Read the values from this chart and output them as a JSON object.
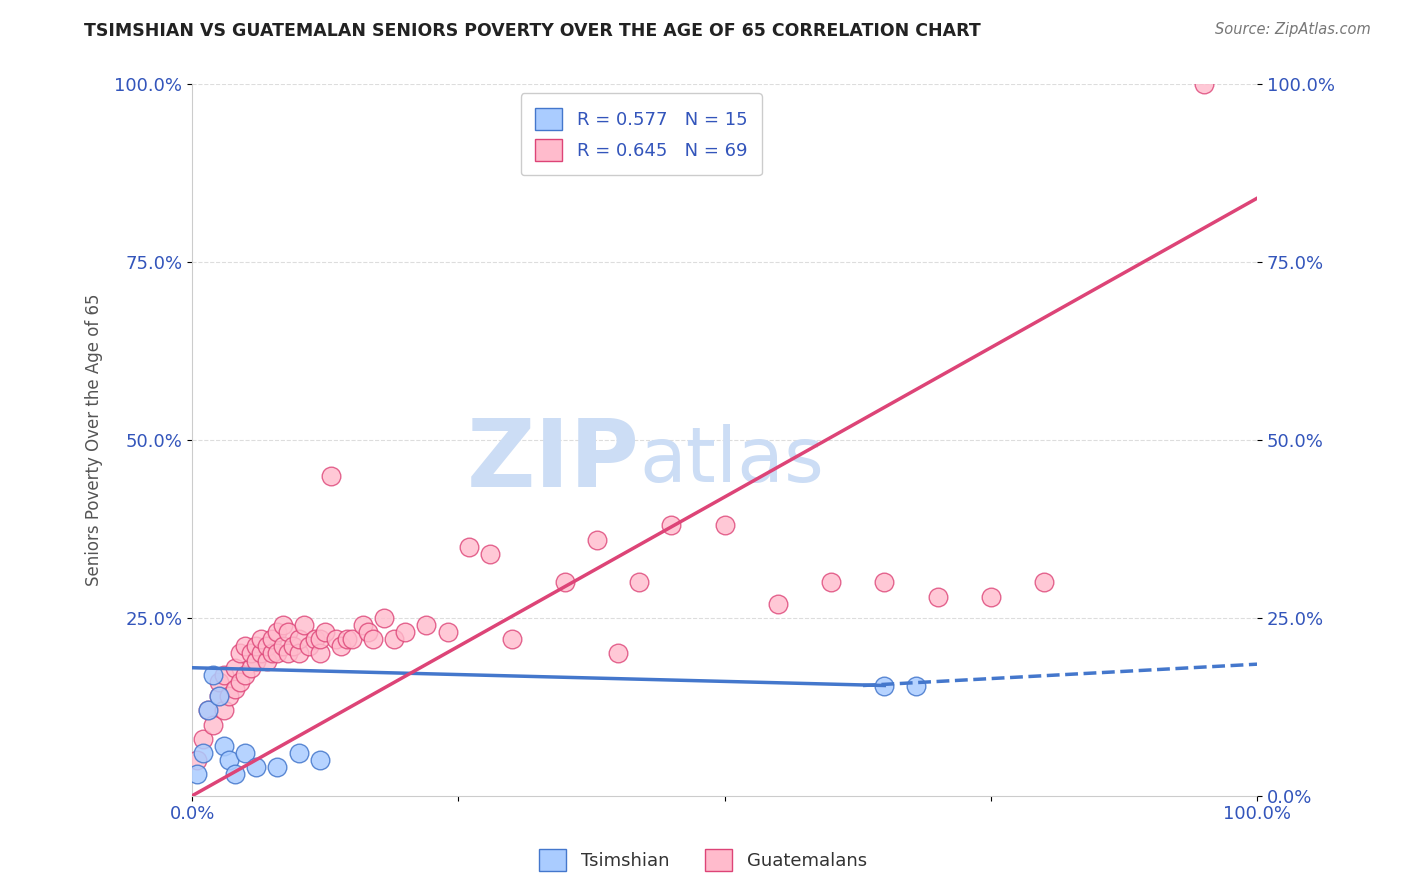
{
  "title": "TSIMSHIAN VS GUATEMALAN SENIORS POVERTY OVER THE AGE OF 65 CORRELATION CHART",
  "source": "Source: ZipAtlas.com",
  "ylabel": "Seniors Poverty Over the Age of 65",
  "tsimshian_R": 0.577,
  "tsimshian_N": 15,
  "guatemalan_R": 0.645,
  "guatemalan_N": 69,
  "tsimshian_color": "#aaccff",
  "tsimshian_line_color": "#4477cc",
  "guatemalan_color": "#ffbbcc",
  "guatemalan_line_color": "#dd4477",
  "background_color": "#ffffff",
  "grid_color": "#dddddd",
  "watermark_zip": "ZIP",
  "watermark_atlas": "atlas",
  "watermark_color": "#ccddf5",
  "legend_text_color": "#3355bb",
  "title_color": "#222222",
  "tsimshian_points_x": [
    0.005,
    0.01,
    0.015,
    0.02,
    0.025,
    0.03,
    0.035,
    0.04,
    0.05,
    0.06,
    0.08,
    0.1,
    0.12,
    0.65,
    0.68
  ],
  "tsimshian_points_y": [
    0.03,
    0.06,
    0.12,
    0.17,
    0.14,
    0.07,
    0.05,
    0.03,
    0.06,
    0.04,
    0.04,
    0.06,
    0.05,
    0.155,
    0.155
  ],
  "guatemalan_points_x": [
    0.005,
    0.01,
    0.015,
    0.02,
    0.025,
    0.025,
    0.03,
    0.03,
    0.035,
    0.04,
    0.04,
    0.045,
    0.045,
    0.05,
    0.05,
    0.055,
    0.055,
    0.06,
    0.06,
    0.065,
    0.065,
    0.07,
    0.07,
    0.075,
    0.075,
    0.08,
    0.08,
    0.085,
    0.085,
    0.09,
    0.09,
    0.095,
    0.1,
    0.1,
    0.105,
    0.11,
    0.115,
    0.12,
    0.12,
    0.125,
    0.13,
    0.135,
    0.14,
    0.145,
    0.15,
    0.16,
    0.165,
    0.17,
    0.18,
    0.19,
    0.2,
    0.22,
    0.24,
    0.26,
    0.28,
    0.3,
    0.35,
    0.38,
    0.4,
    0.42,
    0.45,
    0.5,
    0.55,
    0.6,
    0.65,
    0.7,
    0.75,
    0.8,
    0.95
  ],
  "guatemalan_points_y": [
    0.05,
    0.08,
    0.12,
    0.1,
    0.14,
    0.16,
    0.12,
    0.17,
    0.14,
    0.15,
    0.18,
    0.16,
    0.2,
    0.17,
    0.21,
    0.18,
    0.2,
    0.19,
    0.21,
    0.2,
    0.22,
    0.19,
    0.21,
    0.2,
    0.22,
    0.2,
    0.23,
    0.21,
    0.24,
    0.2,
    0.23,
    0.21,
    0.2,
    0.22,
    0.24,
    0.21,
    0.22,
    0.2,
    0.22,
    0.23,
    0.45,
    0.22,
    0.21,
    0.22,
    0.22,
    0.24,
    0.23,
    0.22,
    0.25,
    0.22,
    0.23,
    0.24,
    0.23,
    0.35,
    0.34,
    0.22,
    0.3,
    0.36,
    0.2,
    0.3,
    0.38,
    0.38,
    0.27,
    0.3,
    0.3,
    0.28,
    0.28,
    0.3,
    1.0
  ],
  "xlim": [
    0.0,
    1.0
  ],
  "ylim": [
    0.0,
    1.0
  ],
  "xticks": [
    0.0,
    0.25,
    0.5,
    0.75,
    1.0
  ],
  "xtick_labels": [
    "0.0%",
    "",
    "",
    "",
    "100.0%"
  ],
  "yticks": [
    0.25,
    0.5,
    0.75,
    1.0
  ],
  "ytick_labels": [
    "25.0%",
    "50.0%",
    "75.0%",
    "100.0%"
  ],
  "right_yticks": [
    0.0,
    0.25,
    0.5,
    0.75,
    1.0
  ],
  "right_ytick_labels": [
    "0.0%",
    "25.0%",
    "50.0%",
    "75.0%",
    "100.0%"
  ],
  "tsimshian_line": [
    0.0,
    0.18,
    0.65,
    0.155
  ],
  "guatemalan_line": [
    0.0,
    0.0,
    1.0,
    0.84
  ],
  "tsimshian_dashed": [
    0.63,
    0.155,
    1.0,
    0.185
  ]
}
